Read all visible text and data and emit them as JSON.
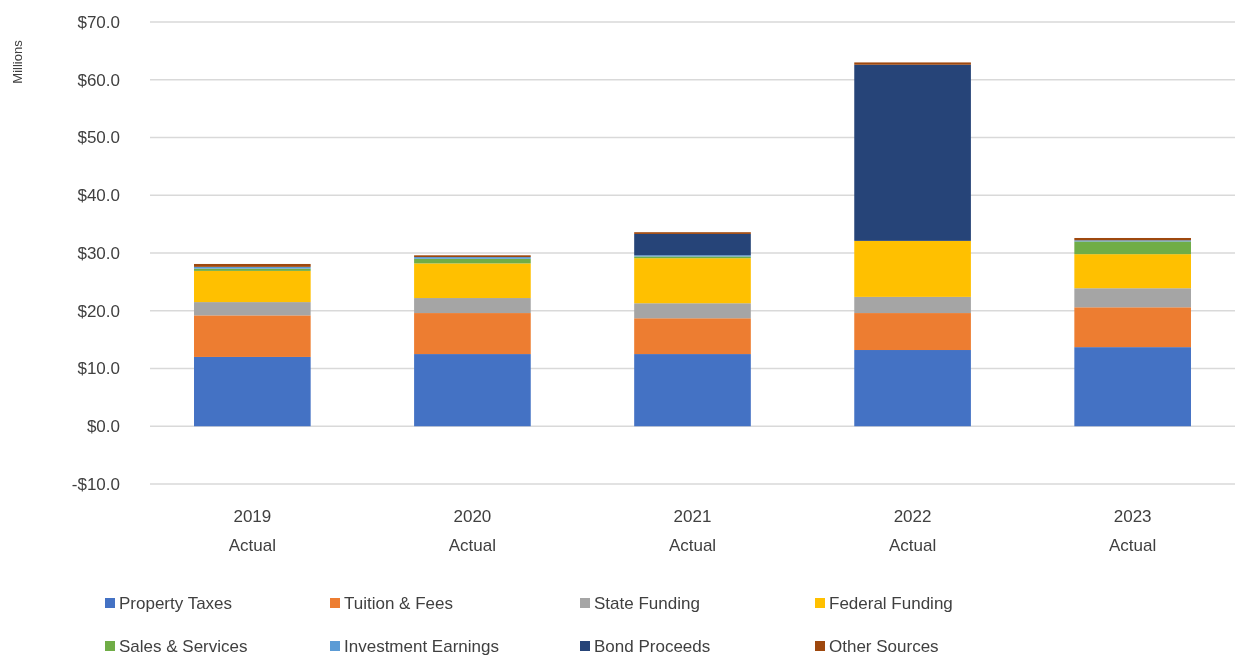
{
  "chart_data": {
    "type": "bar",
    "stacked": true,
    "ylabel": "Millions",
    "categories": [
      "2019\nActual",
      "2020\nActual",
      "2021\nActual",
      "2022\nActual",
      "2023\nActual"
    ],
    "series": [
      {
        "name": "Property Taxes",
        "color": "#4472c4",
        "values": [
          12.0,
          12.5,
          12.5,
          13.2,
          13.7
        ]
      },
      {
        "name": "Tuition & Fees",
        "color": "#ed7d31",
        "values": [
          7.2,
          7.1,
          6.2,
          6.4,
          6.9
        ]
      },
      {
        "name": "State Funding",
        "color": "#a5a5a5",
        "values": [
          2.3,
          2.6,
          2.6,
          2.8,
          3.3
        ]
      },
      {
        "name": "Federal Funding",
        "color": "#ffc000",
        "values": [
          5.4,
          6.0,
          7.8,
          9.7,
          5.9
        ]
      },
      {
        "name": "Sales & Services",
        "color": "#70ad47",
        "values": [
          0.4,
          0.8,
          0.3,
          0.0,
          2.2
        ]
      },
      {
        "name": "Investment Earnings",
        "color": "#5b9bd5",
        "values": [
          0.3,
          0.3,
          0.2,
          0.0,
          0.2
        ]
      },
      {
        "name": "Bond Proceeds",
        "color": "#264478",
        "values": [
          0,
          0,
          3.7,
          30.5,
          0
        ]
      },
      {
        "name": "Other Sources",
        "color": "#9e480e",
        "values": [
          0.5,
          0.3,
          0.3,
          0.4,
          0.4
        ]
      }
    ],
    "ylim": [
      -10,
      70
    ],
    "yticks": [
      {
        "value": -10,
        "label": "-$10.0"
      },
      {
        "value": 0,
        "label": "$0.0"
      },
      {
        "value": 10,
        "label": "$10.0"
      },
      {
        "value": 20,
        "label": "$20.0"
      },
      {
        "value": 30,
        "label": "$30.0"
      },
      {
        "value": 40,
        "label": "$40.0"
      },
      {
        "value": 50,
        "label": "$50.0"
      },
      {
        "value": 60,
        "label": "$60.0"
      },
      {
        "value": 70,
        "label": "$70.0"
      }
    ],
    "grid": "y",
    "legend": "bottom"
  }
}
